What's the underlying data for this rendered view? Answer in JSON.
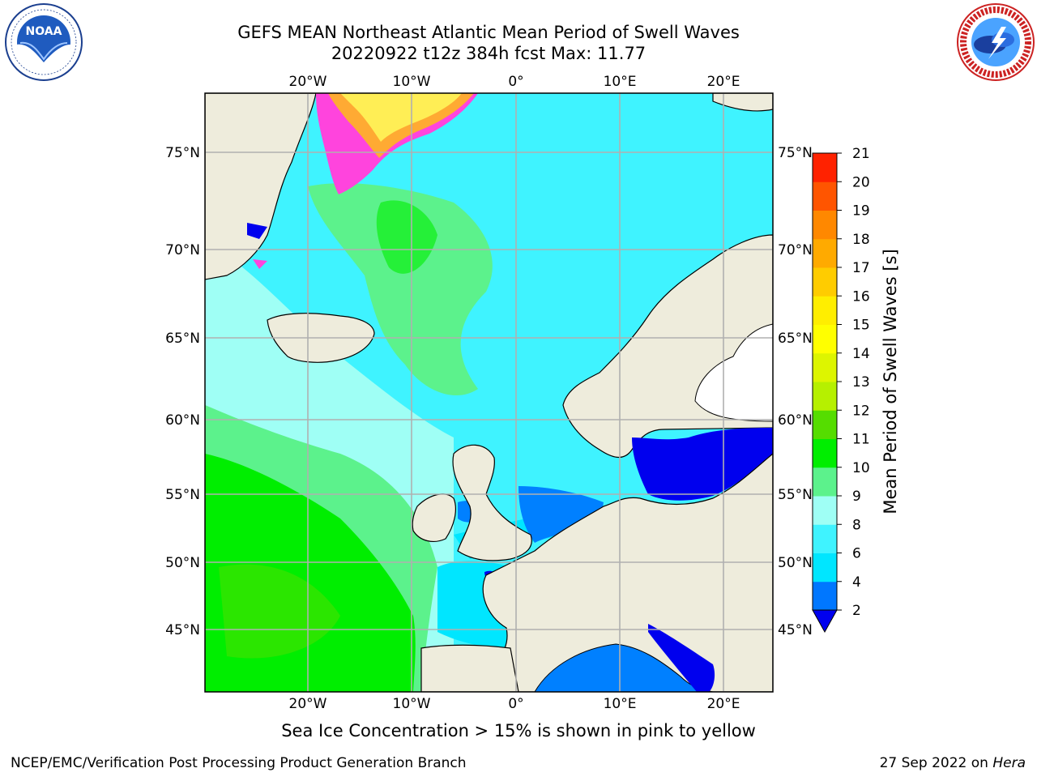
{
  "header": {
    "title_line1": "GEFS MEAN Northeast Atlantic Mean Period of Swell Waves",
    "title_line2": "20220922 t12z 384h fcst   Max: 11.77"
  },
  "logos": {
    "left": {
      "name": "noaa-logo",
      "text": "NOAA",
      "ring_text": "NATIONAL OCEANIC AND ATMOSPHERIC ADMINISTRATION · U.S. DEPARTMENT OF COMMERCE"
    },
    "right": {
      "name": "nws-logo",
      "ring_text": "NATIONAL WEATHER SERVICE"
    }
  },
  "map": {
    "region": "Northeast Atlantic",
    "lon_ticks": [
      "20°W",
      "10°W",
      "0°",
      "10°E",
      "20°E"
    ],
    "lat_ticks": [
      "75°N",
      "70°N",
      "65°N",
      "60°N",
      "55°N",
      "50°N",
      "45°N"
    ],
    "colors": {
      "land": "#eeecdc",
      "ocean_swell_6_8": "#3ff3ff",
      "ocean_swell_4_6": "#00e6ff",
      "ocean_swell_8_9": "#9ffff5",
      "ocean_swell_9_10": "#5cf28c",
      "ocean_swell_10_11": "#00ee00",
      "ocean_swell_2_4": "#0080ff",
      "below_2": "#0000ee",
      "ice_pink": "#ff44dd",
      "ice_orange": "#ffaa33",
      "ice_yellow": "#ffee55",
      "grid": "#b0b0b0"
    }
  },
  "colorbar": {
    "title": "Mean Period of Swell Waves [s]",
    "ticks": [
      "2",
      "4",
      "6",
      "8",
      "9",
      "10",
      "11",
      "12",
      "13",
      "14",
      "15",
      "16",
      "17",
      "18",
      "19",
      "20",
      "21"
    ],
    "colors": [
      "#0077ff",
      "#00e6ff",
      "#3ff3ff",
      "#9ffff5",
      "#5cf28c",
      "#00ee00",
      "#55dd00",
      "#b6f000",
      "#ddf500",
      "#ffff00",
      "#ffee00",
      "#ffcc00",
      "#ffaa00",
      "#ff8800",
      "#ff5500",
      "#ff2200"
    ],
    "extend_below_color": "#0000ee"
  },
  "footer": {
    "ice_note": "Sea Ice Concentration > 15% is shown in pink to yellow",
    "credit": "NCEP/EMC/Verification Post Processing Product Generation Branch",
    "run_date": "27 Sep 2022 on",
    "machine": "Hera"
  }
}
